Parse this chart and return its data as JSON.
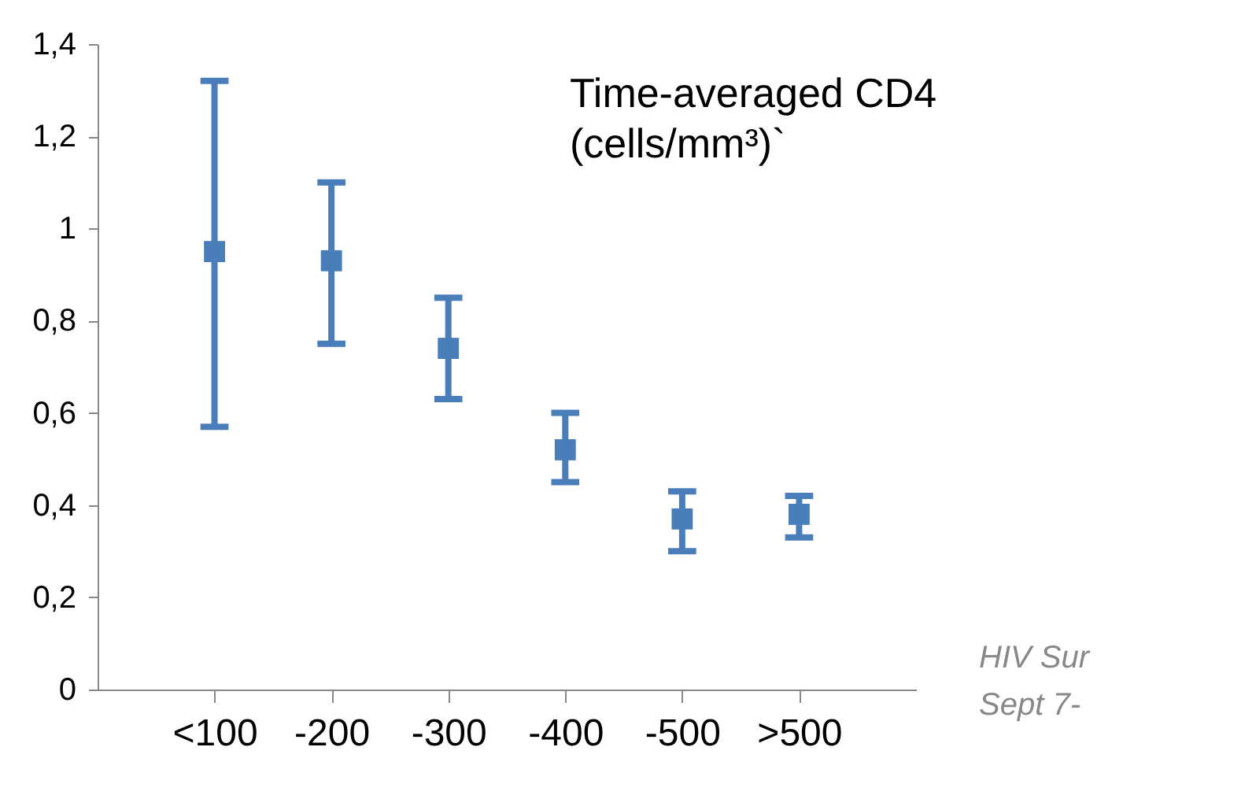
{
  "chart_data": {
    "type": "scatter",
    "categories": [
      "<100",
      "-200",
      "-300",
      "-400",
      "-500",
      ">500"
    ],
    "values": [
      0.95,
      0.93,
      0.74,
      0.52,
      0.37,
      0.38
    ],
    "errors": [
      [
        0.57,
        1.32
      ],
      [
        0.75,
        1.1
      ],
      [
        0.63,
        0.85
      ],
      [
        0.45,
        0.6
      ],
      [
        0.3,
        0.43
      ],
      [
        0.33,
        0.42
      ]
    ],
    "color": "#4a7ebb",
    "marker": "square",
    "grid": false,
    "ylim": [
      0,
      1.4
    ],
    "yticks": [
      0,
      {
        "value": 0.2,
        "label": "0,2"
      },
      {
        "value": 0.4,
        "label": "0,4"
      },
      {
        "value": 0.6,
        "label": "0,6"
      },
      {
        "value": 0.8,
        "label": "0,8"
      },
      1,
      {
        "value": 1.2,
        "label": "1,2"
      },
      {
        "value": 1.4,
        "label": "1,4"
      }
    ],
    "annotations": [
      "Time-averaged CD4",
      "(cells/mm³)`",
      "HIV Sur",
      "Sept 7-"
    ]
  }
}
